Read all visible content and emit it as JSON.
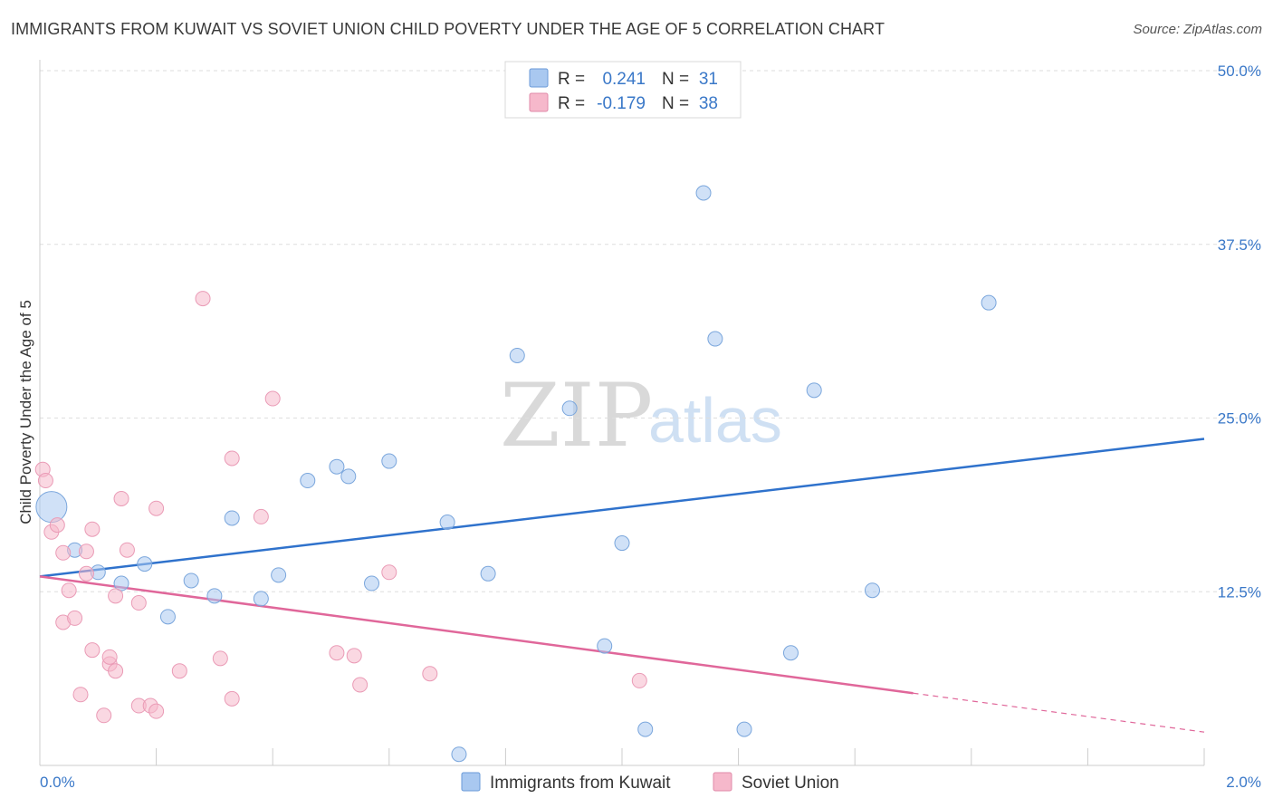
{
  "header": {
    "title": "IMMIGRANTS FROM KUWAIT VS SOVIET UNION CHILD POVERTY UNDER THE AGE OF 5 CORRELATION CHART",
    "source": "Source: ZipAtlas.com"
  },
  "watermark": {
    "zip": "ZIP",
    "atlas": "atlas"
  },
  "legend": {
    "rows": [
      {
        "r_label": "R =",
        "r_value": "0.241",
        "n_label": "N =",
        "n_value": "31",
        "color": "#a9c8f0"
      },
      {
        "r_label": "R =",
        "r_value": "-0.179",
        "n_label": "N =",
        "n_value": "38",
        "color": "#f6b8cb"
      }
    ]
  },
  "bottom_legend": {
    "items": [
      {
        "label": "Immigrants from Kuwait",
        "color": "#a9c8f0"
      },
      {
        "label": "Soviet Union",
        "color": "#f6b8cb"
      }
    ]
  },
  "chart_data": {
    "type": "scatter",
    "title": "IMMIGRANTS FROM KUWAIT VS SOVIET UNION CHILD POVERTY UNDER THE AGE OF 5 CORRELATION CHART",
    "xlabel": "",
    "ylabel": "Child Poverty Under the Age of 5",
    "xlim": [
      0,
      2.0
    ],
    "ylim": [
      0,
      50
    ],
    "x_tick_labels": [
      "0.0%",
      "2.0%"
    ],
    "y_ticks": [
      12.5,
      25.0,
      37.5,
      50.0
    ],
    "y_tick_labels": [
      "12.5%",
      "25.0%",
      "37.5%",
      "50.0%"
    ],
    "grid": true,
    "legend_position": "top-center",
    "series": [
      {
        "name": "Immigrants from Kuwait",
        "color": "#a9c8f0",
        "line_color": "#2f72cc",
        "trend": {
          "x": [
            0,
            2.0
          ],
          "y": [
            13.6,
            23.5
          ]
        },
        "points": [
          {
            "x": 0.02,
            "y": 18.6,
            "big": true
          },
          {
            "x": 0.06,
            "y": 15.5
          },
          {
            "x": 0.1,
            "y": 13.9
          },
          {
            "x": 0.14,
            "y": 13.1
          },
          {
            "x": 0.18,
            "y": 14.5
          },
          {
            "x": 0.22,
            "y": 10.7
          },
          {
            "x": 0.26,
            "y": 13.3
          },
          {
            "x": 0.3,
            "y": 12.2
          },
          {
            "x": 0.33,
            "y": 17.8
          },
          {
            "x": 0.38,
            "y": 12.0
          },
          {
            "x": 0.41,
            "y": 13.7
          },
          {
            "x": 0.46,
            "y": 20.5
          },
          {
            "x": 0.51,
            "y": 21.5
          },
          {
            "x": 0.53,
            "y": 20.8
          },
          {
            "x": 0.57,
            "y": 13.1
          },
          {
            "x": 0.6,
            "y": 21.9
          },
          {
            "x": 0.7,
            "y": 17.5
          },
          {
            "x": 0.72,
            "y": 0.8
          },
          {
            "x": 0.77,
            "y": 13.8
          },
          {
            "x": 0.82,
            "y": 29.5
          },
          {
            "x": 0.91,
            "y": 25.7
          },
          {
            "x": 0.97,
            "y": 8.6
          },
          {
            "x": 1.0,
            "y": 16.0
          },
          {
            "x": 1.04,
            "y": 2.6
          },
          {
            "x": 1.14,
            "y": 41.2
          },
          {
            "x": 1.16,
            "y": 30.7
          },
          {
            "x": 1.21,
            "y": 2.6
          },
          {
            "x": 1.29,
            "y": 8.1
          },
          {
            "x": 1.33,
            "y": 27.0
          },
          {
            "x": 1.43,
            "y": 12.6
          },
          {
            "x": 1.63,
            "y": 33.3
          }
        ]
      },
      {
        "name": "Soviet Union",
        "color": "#f6b8cb",
        "line_color": "#e0679a",
        "trend": {
          "x": [
            0,
            1.5
          ],
          "y": [
            13.6,
            5.2
          ]
        },
        "trend_dashed": {
          "x": [
            1.5,
            2.0
          ],
          "y": [
            5.2,
            2.4
          ]
        },
        "points": [
          {
            "x": 0.005,
            "y": 21.3
          },
          {
            "x": 0.01,
            "y": 20.5
          },
          {
            "x": 0.02,
            "y": 16.8
          },
          {
            "x": 0.03,
            "y": 17.3
          },
          {
            "x": 0.04,
            "y": 10.3
          },
          {
            "x": 0.04,
            "y": 15.3
          },
          {
            "x": 0.05,
            "y": 12.6
          },
          {
            "x": 0.06,
            "y": 10.6
          },
          {
            "x": 0.07,
            "y": 5.1
          },
          {
            "x": 0.08,
            "y": 13.8
          },
          {
            "x": 0.08,
            "y": 15.4
          },
          {
            "x": 0.09,
            "y": 8.3
          },
          {
            "x": 0.09,
            "y": 17.0
          },
          {
            "x": 0.11,
            "y": 3.6
          },
          {
            "x": 0.12,
            "y": 7.3
          },
          {
            "x": 0.12,
            "y": 7.8
          },
          {
            "x": 0.13,
            "y": 12.2
          },
          {
            "x": 0.13,
            "y": 6.8
          },
          {
            "x": 0.14,
            "y": 19.2
          },
          {
            "x": 0.15,
            "y": 15.5
          },
          {
            "x": 0.17,
            "y": 11.7
          },
          {
            "x": 0.17,
            "y": 4.3
          },
          {
            "x": 0.19,
            "y": 4.3
          },
          {
            "x": 0.2,
            "y": 18.5
          },
          {
            "x": 0.2,
            "y": 3.9
          },
          {
            "x": 0.24,
            "y": 6.8
          },
          {
            "x": 0.28,
            "y": 33.6
          },
          {
            "x": 0.31,
            "y": 7.7
          },
          {
            "x": 0.33,
            "y": 22.1
          },
          {
            "x": 0.33,
            "y": 4.8
          },
          {
            "x": 0.38,
            "y": 17.9
          },
          {
            "x": 0.4,
            "y": 26.4
          },
          {
            "x": 0.51,
            "y": 8.1
          },
          {
            "x": 0.54,
            "y": 7.9
          },
          {
            "x": 0.55,
            "y": 5.8
          },
          {
            "x": 0.6,
            "y": 13.9
          },
          {
            "x": 0.67,
            "y": 6.6
          },
          {
            "x": 1.03,
            "y": 6.1
          }
        ]
      }
    ]
  }
}
